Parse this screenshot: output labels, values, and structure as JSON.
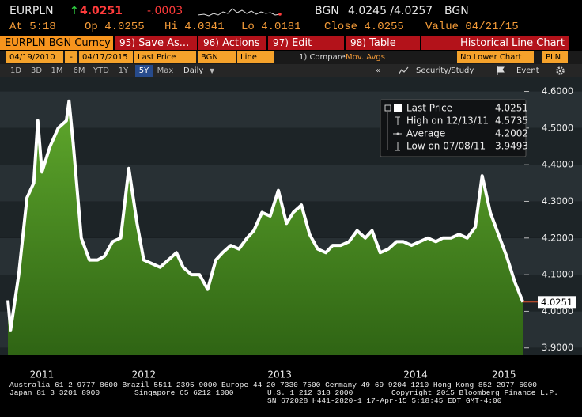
{
  "header": {
    "ticker": "EURPLN",
    "arrow": "↑",
    "last": 4.0251,
    "change": "-.0003",
    "source": "BGN",
    "bid_ask": "4.0245 /4.0257",
    "source2": "BGN",
    "stats": [
      {
        "label": "At",
        "value": "5:18"
      },
      {
        "label": "Op",
        "value": "4.0255"
      },
      {
        "label": "Hi",
        "value": "4.0341"
      },
      {
        "label": "Lo",
        "value": "4.0181"
      },
      {
        "label": "Close",
        "value": "4.0255"
      },
      {
        "label": "Value",
        "value": "04/21/15"
      }
    ]
  },
  "toolbar": {
    "security": "EURPLN BGN Curncy",
    "buttons": [
      {
        "key": "95)",
        "label": "Save As..."
      },
      {
        "key": "96)",
        "label": "Actions"
      },
      {
        "key": "97)",
        "label": "Edit"
      },
      {
        "key": "98)",
        "label": "Table"
      }
    ],
    "view": "Historical Line Chart"
  },
  "settings": {
    "start": "04/19/2010",
    "separator": "-",
    "end": "04/17/2015",
    "field": "Last Price",
    "source": "BGN",
    "style": "Line",
    "compare": "1) Compare",
    "mov_avgs": "Mov. Avgs",
    "lower": "No Lower Chart",
    "currency": "PLN"
  },
  "periods": {
    "items": [
      "1D",
      "3D",
      "1M",
      "6M",
      "YTD",
      "1Y",
      "5Y",
      "Max"
    ],
    "selected": "5Y",
    "frequency": "Daily",
    "collapse": "«",
    "study": "Security/Study",
    "event": "Event"
  },
  "chart_data": {
    "type": "line",
    "grid": true,
    "fill": true,
    "x": [
      2011.5,
      2011.52,
      2011.58,
      2011.64,
      2011.69,
      2011.72,
      2011.75,
      2011.81,
      2011.87,
      2011.93,
      2011.95,
      2011.98,
      2012.04,
      2012.1,
      2012.16,
      2012.21,
      2012.27,
      2012.33,
      2012.39,
      2012.45,
      2012.5,
      2012.56,
      2012.62,
      2012.68,
      2012.74,
      2012.79,
      2012.85,
      2012.91,
      2012.97,
      2013.03,
      2013.08,
      2013.14,
      2013.2,
      2013.26,
      2013.31,
      2013.37,
      2013.43,
      2013.49,
      2013.55,
      2013.6,
      2013.66,
      2013.72,
      2013.78,
      2013.84,
      2013.89,
      2013.95,
      2014.01,
      2014.07,
      2014.13,
      2014.18,
      2014.24,
      2014.3,
      2014.36,
      2014.41,
      2014.47,
      2014.53,
      2014.59,
      2014.65,
      2014.7,
      2014.76,
      2014.82,
      2014.88,
      2014.94,
      2014.99,
      2015.05,
      2015.11,
      2015.17,
      2015.23,
      2015.29
    ],
    "series": [
      {
        "name": "Last Price",
        "color": "#ffffff",
        "fill_color": "#4f8f22",
        "values": [
          4.03,
          3.9493,
          4.1,
          4.31,
          4.35,
          4.52,
          4.38,
          4.45,
          4.5,
          4.52,
          4.5735,
          4.46,
          4.2,
          4.14,
          4.14,
          4.15,
          4.19,
          4.2,
          4.39,
          4.24,
          4.14,
          4.13,
          4.12,
          4.14,
          4.16,
          4.12,
          4.1,
          4.1,
          4.06,
          4.14,
          4.16,
          4.18,
          4.17,
          4.2,
          4.22,
          4.27,
          4.26,
          4.33,
          4.24,
          4.27,
          4.29,
          4.21,
          4.17,
          4.16,
          4.18,
          4.18,
          4.19,
          4.22,
          4.2,
          4.22,
          4.16,
          4.17,
          4.19,
          4.19,
          4.18,
          4.19,
          4.2,
          4.19,
          4.2,
          4.2,
          4.21,
          4.2,
          4.23,
          4.37,
          4.27,
          4.21,
          4.15,
          4.08,
          4.0251
        ]
      }
    ],
    "stats": [
      {
        "label": "High on 12/13/11",
        "value": 4.5735
      },
      {
        "label": "Average",
        "value": 4.2002
      },
      {
        "label": "Low on 07/08/11",
        "value": 3.9493
      }
    ],
    "xlim": [
      2011.5,
      2015.3
    ],
    "xticks": [
      {
        "value": 2011.75,
        "label": "2011"
      },
      {
        "value": 2012.5,
        "label": "2012"
      },
      {
        "value": 2013.5,
        "label": "2013"
      },
      {
        "value": 2014.5,
        "label": "2014"
      },
      {
        "value": 2015.15,
        "label": "2015"
      }
    ],
    "ylim": [
      3.88,
      4.64
    ],
    "yticks": [
      {
        "value": 3.9,
        "label": "3.9000"
      },
      {
        "value": 4.0,
        "label": "4.0000"
      },
      {
        "value": 4.1,
        "label": "4.1000"
      },
      {
        "value": 4.2,
        "label": "4.2000"
      },
      {
        "value": 4.3,
        "label": "4.3000"
      },
      {
        "value": 4.4,
        "label": "4.4000"
      },
      {
        "value": 4.5,
        "label": "4.5000"
      },
      {
        "value": 4.6,
        "label": "4.6000"
      }
    ]
  },
  "footer": {
    "line1": "Australia 61 2 9777 8600 Brazil 5511 2395 9000 Europe 44 20 7330 7500 Germany 49 69 9204 1210 Hong Kong 852 2977 6000",
    "line2": [
      "Japan 81 3 3201 8900",
      "Singapore 65 6212 1000",
      "U.S. 1 212 318 2000",
      "Copyright 2015 Bloomberg Finance L.P."
    ],
    "line3": "SN 672028 H441-2820-1 17-Apr-15  5:18:45 EDT  GMT-4:00"
  }
}
